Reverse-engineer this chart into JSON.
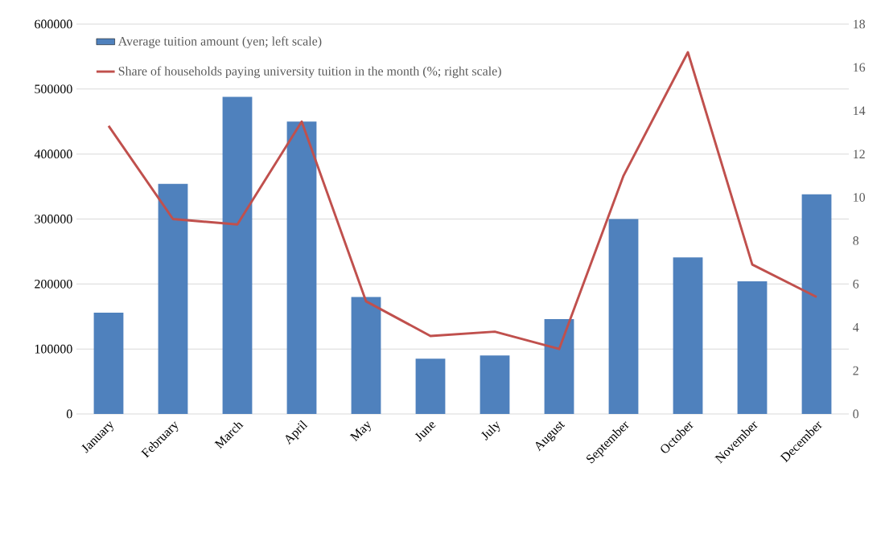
{
  "chart_data": {
    "type": "bar",
    "categories": [
      "January",
      "February",
      "March",
      "April",
      "May",
      "June",
      "July",
      "August",
      "September",
      "October",
      "November",
      "December"
    ],
    "series": [
      {
        "name": "Average tuition amount (yen; left scale)",
        "color": "#4f81bd",
        "values": [
          156000,
          354000,
          488000,
          450000,
          180000,
          85000,
          90000,
          146000,
          300000,
          241000,
          204000,
          338000
        ]
      },
      {
        "name": "Share of households paying university tuition in the month (%; right scale)",
        "type": "line",
        "axis": "y2",
        "color": "#c0504d",
        "values": [
          13.3,
          9.0,
          8.75,
          13.5,
          5.2,
          3.6,
          3.8,
          3.0,
          11.0,
          16.7,
          6.9,
          5.4
        ]
      }
    ],
    "ylim": [
      0,
      600000
    ],
    "yticks": [
      0,
      100000,
      200000,
      300000,
      400000,
      500000,
      600000
    ],
    "y2lim": [
      0,
      18
    ],
    "y2ticks": [
      0,
      2,
      4,
      6,
      8,
      10,
      12,
      14,
      16,
      18
    ],
    "grid": "y",
    "legend": "top left"
  }
}
